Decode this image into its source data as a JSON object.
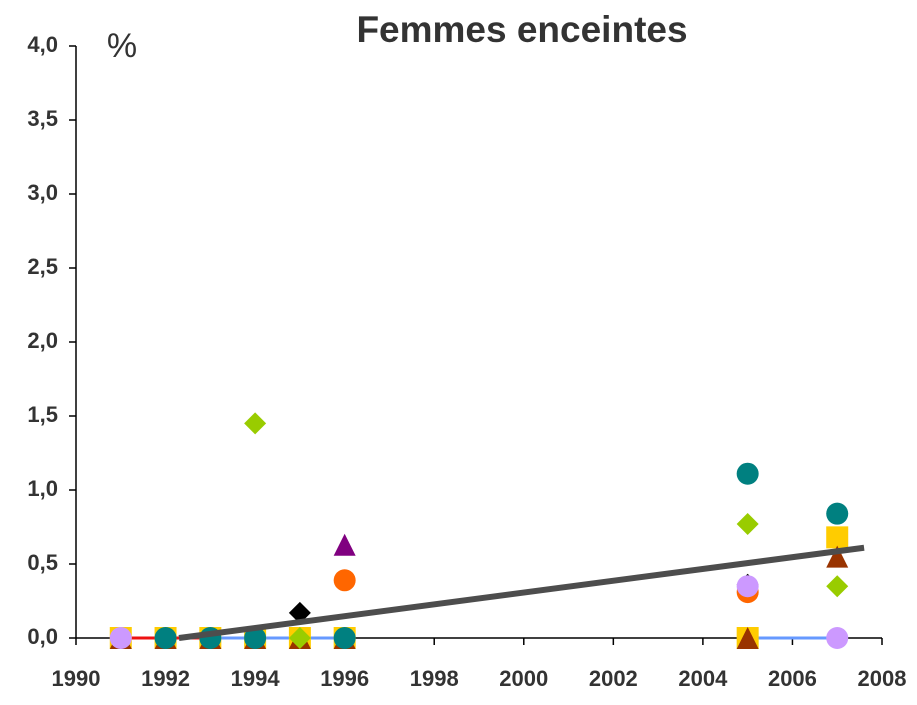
{
  "chart_data": {
    "type": "scatter",
    "title": "Femmes enceintes",
    "ylabel": "%",
    "xlim": [
      1990,
      2008
    ],
    "xticks": [
      1990,
      1992,
      1994,
      1996,
      1998,
      2000,
      2002,
      2004,
      2006,
      2008
    ],
    "ylim": [
      0,
      4
    ],
    "yticks": [
      {
        "value": 0,
        "label": "0,0"
      },
      {
        "value": 0.5,
        "label": "0,5"
      },
      {
        "value": 1,
        "label": "1,0"
      },
      {
        "value": 1.5,
        "label": "1,5"
      },
      {
        "value": 2,
        "label": "2,0"
      },
      {
        "value": 2.5,
        "label": "2,5"
      },
      {
        "value": 3,
        "label": "3,0"
      },
      {
        "value": 3.5,
        "label": "3,5"
      },
      {
        "value": 4,
        "label": "4,0"
      }
    ],
    "series": [
      {
        "color": "#ee1111",
        "marker": "none",
        "line": true,
        "x": [
          1991,
          1992,
          1993,
          1994,
          1995,
          1996
        ],
        "values": [
          0,
          0,
          0,
          0,
          0,
          0
        ]
      },
      {
        "color": "#6699ff",
        "marker": "none",
        "line": true,
        "x": [
          1993,
          1994,
          1995,
          1996
        ],
        "values": [
          0,
          0,
          0,
          0
        ]
      },
      {
        "color": "#6699ff",
        "marker": "none",
        "line": true,
        "x": [
          2005,
          2007
        ],
        "values": [
          0,
          0
        ]
      },
      {
        "color": "#ffcc00",
        "marker": "square",
        "x": [
          1991,
          1992,
          1993,
          1994,
          1995,
          1996,
          2005,
          2007
        ],
        "values": [
          0,
          0,
          0,
          0,
          0,
          0,
          0,
          0.68
        ]
      },
      {
        "color": "#993300",
        "marker": "triangle",
        "x": [
          1991,
          1992,
          1993,
          1994,
          1995,
          1996,
          2005,
          2007
        ],
        "values": [
          0,
          0,
          0,
          0,
          0,
          0,
          0,
          0.55
        ]
      },
      {
        "color": "#800080",
        "marker": "triangle",
        "x": [
          1996
        ],
        "values": [
          0.63
        ]
      },
      {
        "color": "#ff6600",
        "marker": "circle",
        "x": [
          1996,
          2005
        ],
        "values": [
          0.39,
          0.31
        ]
      },
      {
        "color": "#000000",
        "marker": "diamond",
        "x": [
          1995,
          2005
        ],
        "values": [
          0.17,
          0.36
        ]
      },
      {
        "color": "#99cc00",
        "marker": "diamond",
        "x": [
          1992,
          1993,
          1994,
          1995,
          2005,
          2007
        ],
        "values": [
          0,
          0,
          1.45,
          0,
          0.77,
          0.35
        ]
      },
      {
        "color": "#008080",
        "marker": "circle",
        "x": [
          1992,
          1993,
          1994,
          1996,
          2005,
          2007
        ],
        "values": [
          0,
          0,
          0,
          0,
          1.11,
          0.84
        ]
      },
      {
        "color": "#cc99ff",
        "marker": "circle",
        "x": [
          1991,
          2005,
          2007
        ],
        "values": [
          0,
          0.35,
          0
        ]
      },
      {
        "color": "#4d4d4d",
        "marker": "none",
        "line": true,
        "width": 6,
        "x": [
          1992.3,
          2007.6
        ],
        "values": [
          0,
          0.61
        ]
      }
    ]
  }
}
